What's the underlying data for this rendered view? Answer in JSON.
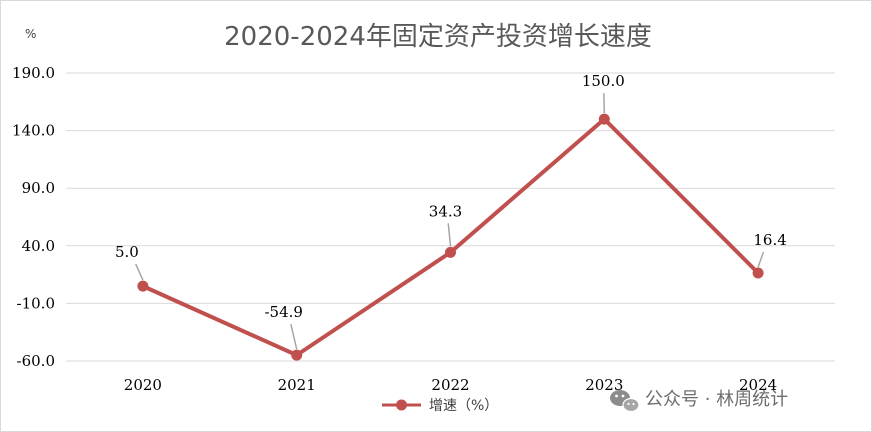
{
  "chart_data": {
    "type": "line",
    "title": "2020-2024年固定资产投资增长速度",
    "unit_label": "%",
    "categories": [
      "2020",
      "2021",
      "2022",
      "2023",
      "2024"
    ],
    "series": [
      {
        "name": "增速（%）",
        "values": [
          5.0,
          -54.9,
          34.3,
          150.0,
          16.4
        ],
        "color": "#c0504d"
      }
    ],
    "data_labels": [
      "5.0",
      "-54.9",
      "34.3",
      "150.0",
      "16.4"
    ],
    "y_ticks": [
      "190.0",
      "140.0",
      "90.0",
      "40.0",
      "-10.0",
      "-60.0"
    ],
    "ylim": [
      -60,
      190
    ],
    "grid": true,
    "legend_position": "bottom"
  },
  "watermark": {
    "text": "公众号 · 林周统计",
    "icon": "wechat-icon"
  },
  "colors": {
    "gridline": "#d9d9d9",
    "series": "#c0504d",
    "leader": "#a6a6a6"
  }
}
